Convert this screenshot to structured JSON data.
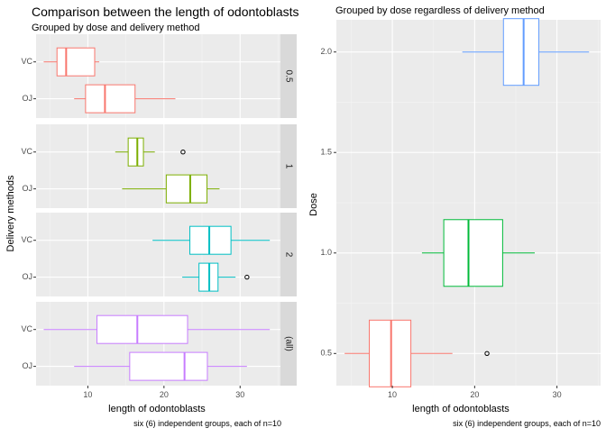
{
  "chart_data": [
    {
      "type": "boxplot",
      "title": "Comparison between the length of odontoblasts",
      "subtitle": "Grouped by dose and delivery method",
      "xlabel": "length of odontoblasts",
      "ylabel": "Delivery methods",
      "caption": "six (6) independent groups, each of n=10",
      "orientation": "horizontal",
      "facet": "rows",
      "xlim": [
        3.2,
        35.3
      ],
      "xticks": [
        10,
        20,
        30
      ],
      "grid": true,
      "facets": [
        {
          "strip": "0.5",
          "color": "#F8766D",
          "groups": [
            {
              "label": "VC",
              "whisker_low": 4.2,
              "q1": 5.95,
              "median": 7.15,
              "q3": 10.9,
              "whisker_high": 11.5,
              "outliers": []
            },
            {
              "label": "OJ",
              "whisker_low": 8.2,
              "q1": 9.7,
              "median": 12.25,
              "q3": 16.2,
              "whisker_high": 21.5,
              "outliers": []
            }
          ]
        },
        {
          "strip": "1",
          "color": "#7CAE00",
          "groups": [
            {
              "label": "VC",
              "whisker_low": 13.6,
              "q1": 15.3,
              "median": 16.5,
              "q3": 17.3,
              "whisker_high": 18.8,
              "outliers": [
                22.5
              ]
            },
            {
              "label": "OJ",
              "whisker_low": 14.5,
              "q1": 20.3,
              "median": 23.45,
              "q3": 25.65,
              "whisker_high": 27.3,
              "outliers": []
            }
          ]
        },
        {
          "strip": "2",
          "color": "#00BFC4",
          "groups": [
            {
              "label": "VC",
              "whisker_low": 18.5,
              "q1": 23.4,
              "median": 25.95,
              "q3": 28.8,
              "whisker_high": 33.9,
              "outliers": []
            },
            {
              "label": "OJ",
              "whisker_low": 22.4,
              "q1": 24.6,
              "median": 25.95,
              "q3": 27.1,
              "whisker_high": 29.4,
              "outliers": [
                30.9
              ]
            }
          ]
        },
        {
          "strip": "(all)",
          "color": "#C77CFF",
          "groups": [
            {
              "label": "VC",
              "whisker_low": 4.2,
              "q1": 11.2,
              "median": 16.5,
              "q3": 23.1,
              "whisker_high": 33.9,
              "outliers": []
            },
            {
              "label": "OJ",
              "whisker_low": 8.2,
              "q1": 15.5,
              "median": 22.7,
              "q3": 25.7,
              "whisker_high": 30.9,
              "outliers": []
            }
          ]
        }
      ]
    },
    {
      "type": "boxplot",
      "title": "Grouped by dose regardless of delivery method",
      "xlabel": "length of odontoblasts",
      "ylabel": "Dose",
      "caption": "six (6) independent groups, each of n=10",
      "orientation": "horizontal",
      "xlim": [
        3.2,
        35.3
      ],
      "xticks": [
        10,
        20,
        30
      ],
      "ylim": [
        0.34,
        2.16
      ],
      "yticks": [
        0.5,
        1.0,
        1.5,
        2.0
      ],
      "ytick_labels": [
        "0.5",
        "1.0",
        "1.5",
        "2.0"
      ],
      "grid": true,
      "groups": [
        {
          "dose": 0.5,
          "color": "#F8766D",
          "whisker_low": 4.2,
          "q1": 7.2,
          "median": 9.85,
          "q3": 12.25,
          "whisker_high": 17.3,
          "outliers": [
            21.5
          ]
        },
        {
          "dose": 1.0,
          "color": "#00BA38",
          "whisker_low": 13.6,
          "q1": 16.25,
          "median": 19.25,
          "q3": 23.4,
          "whisker_high": 27.3,
          "outliers": []
        },
        {
          "dose": 2.0,
          "color": "#619CFF",
          "whisker_low": 18.5,
          "q1": 23.5,
          "median": 25.95,
          "q3": 27.8,
          "whisker_high": 33.9,
          "outliers": []
        }
      ]
    }
  ]
}
